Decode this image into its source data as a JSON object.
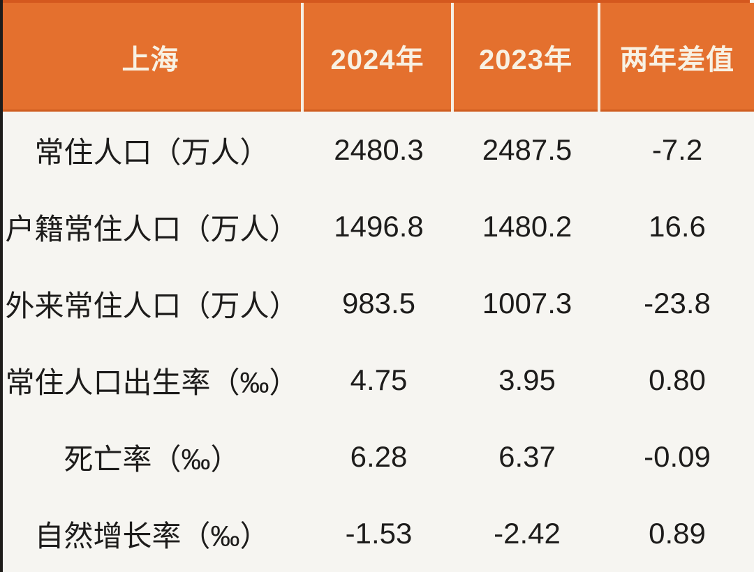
{
  "header": {
    "region": "上海",
    "col_2024": "2024年",
    "col_2023": "2023年",
    "col_diff": "两年差值"
  },
  "rows": [
    {
      "label": "常住人口（万人）",
      "v2024": "2480.3",
      "v2023": "2487.5",
      "diff": "-7.2"
    },
    {
      "label": "户籍常住人口（万人）",
      "v2024": "1496.8",
      "v2023": "1480.2",
      "diff": "16.6"
    },
    {
      "label": "外来常住人口（万人）",
      "v2024": "983.5",
      "v2023": "1007.3",
      "diff": "-23.8"
    },
    {
      "label": "常住人口出生率（‰）",
      "v2024": "4.75",
      "v2023": "3.95",
      "diff": "0.80"
    },
    {
      "label": "死亡率（‰）",
      "v2024": "6.28",
      "v2023": "6.37",
      "diff": "-0.09"
    },
    {
      "label": "自然增长率（‰）",
      "v2024": "-1.53",
      "v2023": "-2.42",
      "diff": "0.89"
    }
  ],
  "colors": {
    "header_bg": "#e4702e",
    "header_text": "#f8f1e3",
    "header_divider": "#f6efe3",
    "body_bg": "#f6f5f1",
    "body_text": "#1d1c1b"
  },
  "chart_data": {
    "type": "table",
    "title": "上海 2024年 vs 2023年 人口统计",
    "columns": [
      "上海",
      "2024年",
      "2023年",
      "两年差值"
    ],
    "rows": [
      {
        "label": "常住人口（万人）",
        "y2024": 2480.3,
        "y2023": 2487.5,
        "diff": -7.2
      },
      {
        "label": "户籍常住人口（万人）",
        "y2024": 1496.8,
        "y2023": 1480.2,
        "diff": 16.6
      },
      {
        "label": "外来常住人口（万人）",
        "y2024": 983.5,
        "y2023": 1007.3,
        "diff": -23.8
      },
      {
        "label": "常住人口出生率（‰）",
        "y2024": 4.75,
        "y2023": 3.95,
        "diff": 0.8
      },
      {
        "label": "死亡率（‰）",
        "y2024": 6.28,
        "y2023": 6.37,
        "diff": -0.09
      },
      {
        "label": "自然增长率（‰）",
        "y2024": -1.53,
        "y2023": -2.42,
        "diff": 0.89
      }
    ]
  }
}
